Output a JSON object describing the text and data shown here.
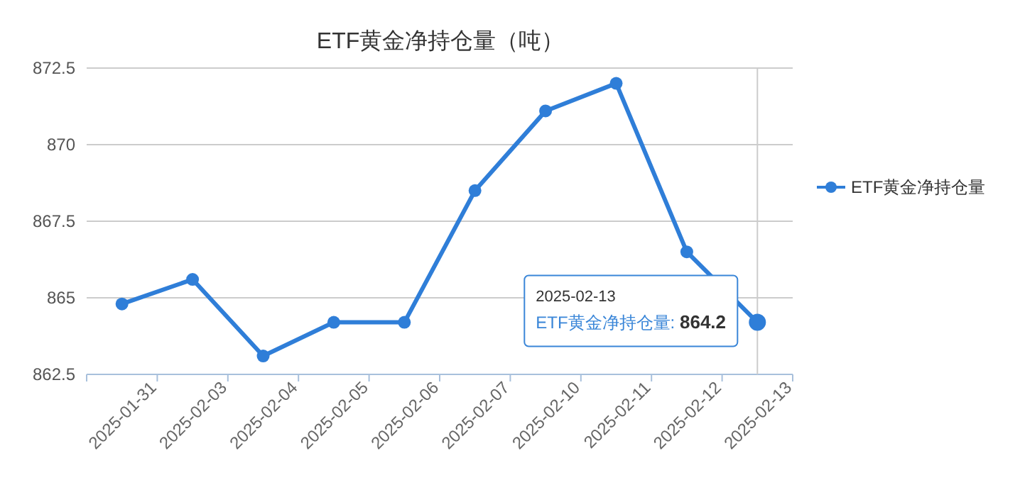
{
  "chart_data": {
    "type": "line",
    "title": "ETF黄金净持仓量（吨）",
    "categories": [
      "2025-01-31",
      "2025-02-03",
      "2025-02-04",
      "2025-02-05",
      "2025-02-06",
      "2025-02-07",
      "2025-02-10",
      "2025-02-11",
      "2025-02-12",
      "2025-02-13"
    ],
    "series": [
      {
        "name": "ETF黄金净持仓量",
        "color": "#2f7ed8",
        "values": [
          864.8,
          865.6,
          863.1,
          864.2,
          864.2,
          868.5,
          871.1,
          872.0,
          866.5,
          864.2
        ]
      }
    ],
    "ylim": [
      862.5,
      872.5
    ],
    "yticks": [
      862.5,
      865,
      867.5,
      870,
      872.5
    ],
    "grid": "y",
    "legend": "right",
    "marker": "circle",
    "line_style": "solid",
    "ref_lines": [
      {
        "axis": "x",
        "value": "2025-02-13",
        "label": null,
        "color": "#cccccc"
      }
    ],
    "annotations": [
      {
        "text": "2025-02-13\nETF黄金净持仓量: 864.2",
        "x": "2025-02-13",
        "y": 864.2
      }
    ]
  }
}
